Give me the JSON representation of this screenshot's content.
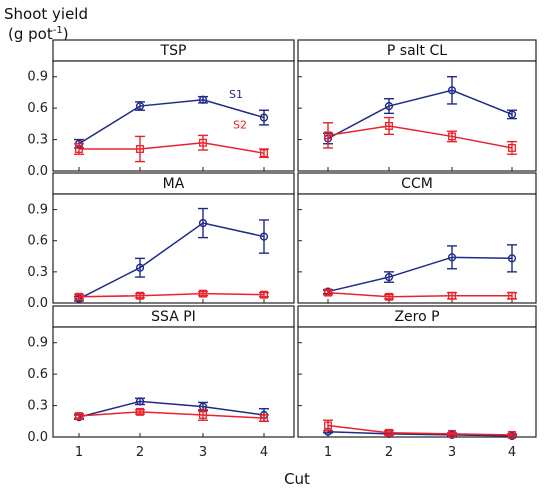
{
  "chart_data": {
    "type": "line",
    "ylabel_line1": "Shoot yield",
    "ylabel_line2_prefix": "(g pot",
    "ylabel_line2_sup": "-1",
    "ylabel_line2_suffix": ")",
    "xlabel": "Cut",
    "x": [
      1,
      2,
      3,
      4
    ],
    "xtick_labels": [
      "1",
      "2",
      "3",
      "4"
    ],
    "ylim": [
      0,
      1.05
    ],
    "yticks": [
      0.0,
      0.3,
      0.6,
      0.9
    ],
    "ytick_labels": [
      "0.0",
      "0.3",
      "0.6",
      "0.9"
    ],
    "grid": false,
    "series_styles": [
      {
        "color": "#1f2a8a",
        "marker": "circle"
      },
      {
        "color": "#e8222a",
        "marker": "square"
      }
    ],
    "panels": [
      {
        "title": "TSP",
        "series": [
          {
            "name": "S1",
            "values": [
              0.26,
              0.62,
              0.68,
              0.51
            ],
            "errors": [
              0.04,
              0.04,
              0.03,
              0.07
            ]
          },
          {
            "name": "S2",
            "values": [
              0.21,
              0.21,
              0.27,
              0.17
            ],
            "errors": [
              0.05,
              0.12,
              0.07,
              0.04
            ]
          }
        ]
      },
      {
        "title": "P salt CL",
        "series": [
          {
            "values": [
              0.31,
              0.62,
              0.77,
              0.54
            ],
            "errors": [
              0.05,
              0.07,
              0.13,
              0.04
            ]
          },
          {
            "values": [
              0.34,
              0.43,
              0.33,
              0.22
            ],
            "errors": [
              0.12,
              0.08,
              0.05,
              0.06
            ]
          }
        ]
      },
      {
        "title": "MA",
        "series": [
          {
            "values": [
              0.04,
              0.34,
              0.77,
              0.64
            ],
            "errors": [
              0.02,
              0.09,
              0.14,
              0.16
            ]
          },
          {
            "values": [
              0.06,
              0.07,
              0.09,
              0.08
            ],
            "errors": [
              0.02,
              0.02,
              0.02,
              0.02
            ]
          }
        ]
      },
      {
        "title": "CCM",
        "series": [
          {
            "values": [
              0.11,
              0.25,
              0.44,
              0.43
            ],
            "errors": [
              0.02,
              0.05,
              0.11,
              0.13
            ]
          },
          {
            "values": [
              0.1,
              0.06,
              0.07,
              0.07
            ],
            "errors": [
              0.02,
              0.02,
              0.03,
              0.03
            ]
          }
        ]
      },
      {
        "title": "SSA PI",
        "series": [
          {
            "values": [
              0.19,
              0.34,
              0.29,
              0.21
            ],
            "errors": [
              0.02,
              0.03,
              0.04,
              0.06
            ]
          },
          {
            "values": [
              0.2,
              0.24,
              0.21,
              0.18
            ],
            "errors": [
              0.02,
              0.02,
              0.05,
              0.03
            ]
          }
        ]
      },
      {
        "title": "Zero P",
        "series": [
          {
            "values": [
              0.05,
              0.03,
              0.02,
              0.01
            ],
            "errors": [
              0.01,
              0.01,
              0.01,
              0.01
            ]
          },
          {
            "values": [
              0.11,
              0.04,
              0.03,
              0.02
            ],
            "errors": [
              0.05,
              0.02,
              0.01,
              0.01
            ]
          }
        ]
      }
    ]
  }
}
